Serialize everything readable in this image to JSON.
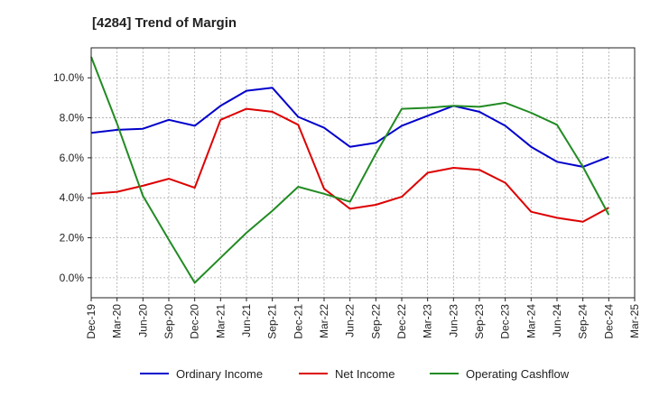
{
  "chart_data": {
    "type": "line",
    "title": "[4284]  Trend of Margin",
    "xlabel": "",
    "ylabel": "",
    "x": [
      "Dec-19",
      "Mar-20",
      "Jun-20",
      "Sep-20",
      "Dec-20",
      "Mar-21",
      "Jun-21",
      "Sep-21",
      "Dec-21",
      "Mar-22",
      "Jun-22",
      "Sep-22",
      "Dec-22",
      "Mar-23",
      "Jun-23",
      "Sep-23",
      "Dec-23",
      "Mar-24",
      "Jun-24",
      "Sep-24",
      "Dec-24",
      "Mar-25"
    ],
    "ylim": [
      -1.0,
      11.5
    ],
    "yticks": [
      0.0,
      2.0,
      4.0,
      6.0,
      8.0,
      10.0
    ],
    "ytick_labels": [
      "0.0%",
      "2.0%",
      "4.0%",
      "6.0%",
      "8.0%",
      "10.0%"
    ],
    "grid": true,
    "legend_position": "bottom",
    "series": [
      {
        "name": "Ordinary Income",
        "color": "#0000cc",
        "values": [
          7.25,
          7.4,
          7.45,
          7.9,
          7.6,
          8.6,
          9.35,
          9.5,
          8.05,
          7.5,
          6.55,
          6.75,
          7.6,
          8.1,
          8.6,
          8.3,
          7.6,
          6.55,
          5.8,
          5.55,
          6.05,
          null
        ]
      },
      {
        "name": "Net Income",
        "color": "#dd0000",
        "values": [
          4.2,
          4.3,
          4.6,
          4.95,
          4.5,
          7.9,
          8.45,
          8.3,
          7.65,
          4.45,
          3.45,
          3.65,
          4.05,
          5.25,
          5.5,
          5.4,
          4.75,
          3.3,
          3.0,
          2.8,
          3.5,
          null
        ]
      },
      {
        "name": "Operating Cashflow",
        "color": "#228b22",
        "values": [
          11.05,
          7.7,
          4.1,
          1.9,
          -0.25,
          1.0,
          2.25,
          3.35,
          4.55,
          4.2,
          3.8,
          6.2,
          8.45,
          8.5,
          8.6,
          8.55,
          8.75,
          8.25,
          7.65,
          5.55,
          3.15,
          null
        ]
      }
    ]
  },
  "colors": {
    "grid": "#aaaaaa",
    "axis": "#222222"
  }
}
